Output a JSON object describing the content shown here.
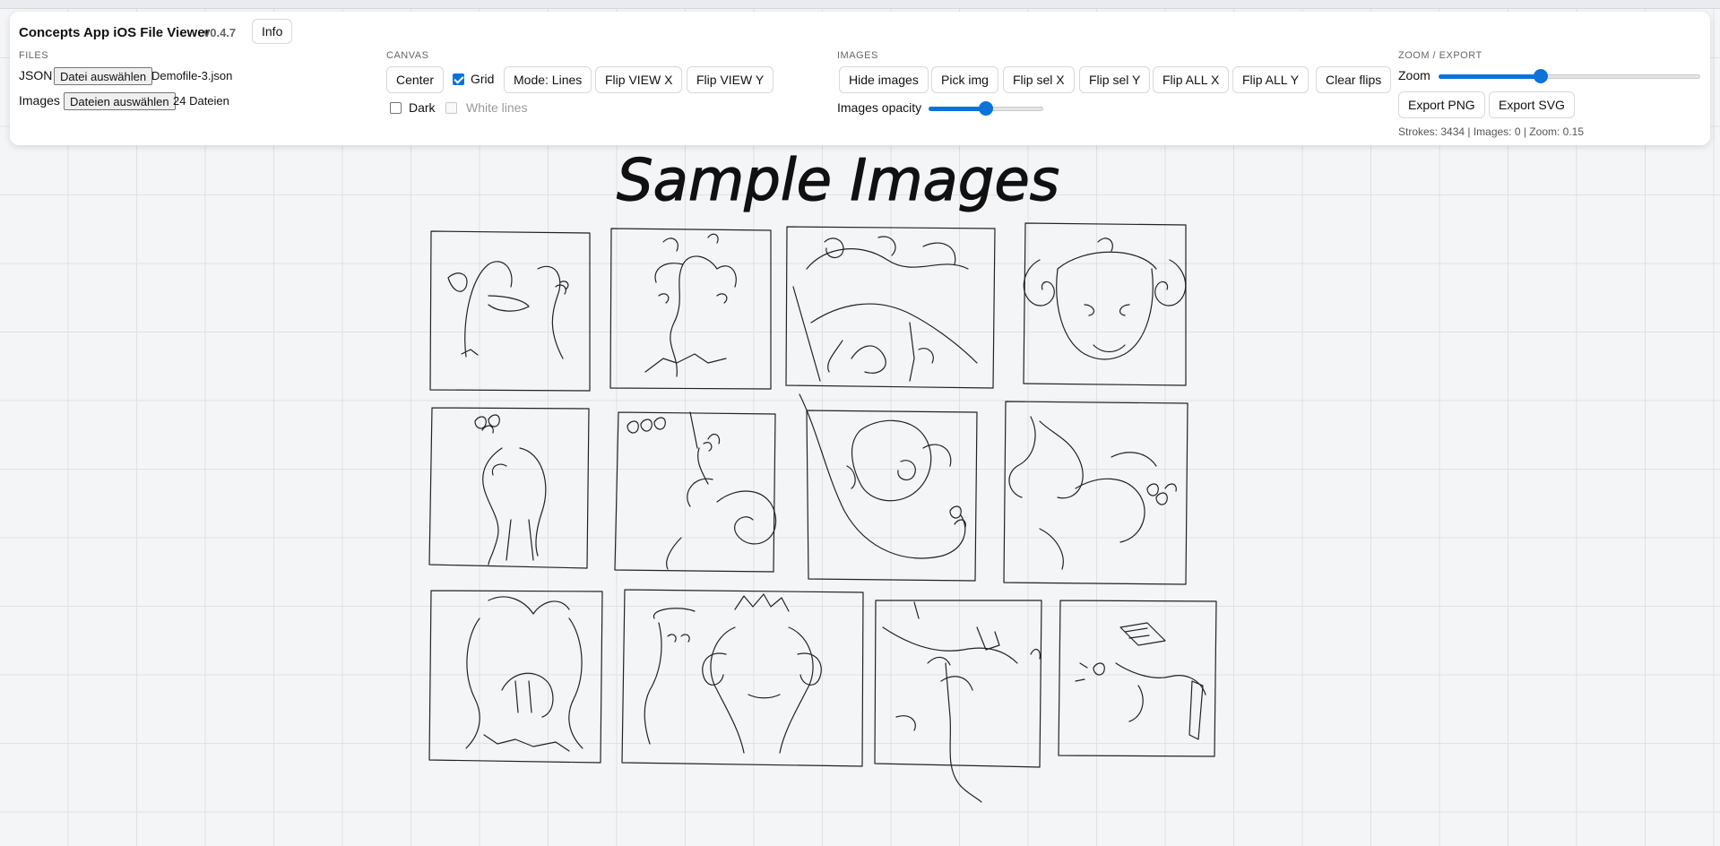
{
  "app": {
    "title": "Concepts App iOS File Viewer",
    "version": "v0.4.7",
    "info_label": "Info"
  },
  "files": {
    "section_label": "FILES",
    "json_label": "JSON",
    "json_button": "Datei auswählen",
    "json_file": "Demofile-3.json",
    "images_label": "Images",
    "images_button": "Dateien auswählen",
    "images_files": "24 Dateien"
  },
  "canvas": {
    "section_label": "CANVAS",
    "center_button": "Center",
    "grid_label": "Grid",
    "grid_checked": true,
    "mode_button": "Mode: Lines",
    "flip_view_x": "Flip VIEW X",
    "flip_view_y": "Flip VIEW Y",
    "dark_label": "Dark",
    "dark_checked": false,
    "white_lines_label": "White lines",
    "white_lines_disabled": true
  },
  "images": {
    "section_label": "IMAGES",
    "buttons": [
      "Hide images",
      "Pick img",
      "Flip sel X",
      "Flip sel Y",
      "Flip ALL X",
      "Flip ALL Y",
      "Clear flips"
    ],
    "opacity_label": "Images opacity",
    "opacity_value": 0.5
  },
  "zoom_export": {
    "section_label": "ZOOM / EXPORT",
    "zoom_label": "Zoom",
    "zoom_slider_fraction": 0.39,
    "export_png": "Export PNG",
    "export_svg": "Export SVG",
    "stats": "Strokes: 3434 | Images: 0 | Zoom: 0.15"
  },
  "drawing": {
    "heading": "Sample Images"
  }
}
